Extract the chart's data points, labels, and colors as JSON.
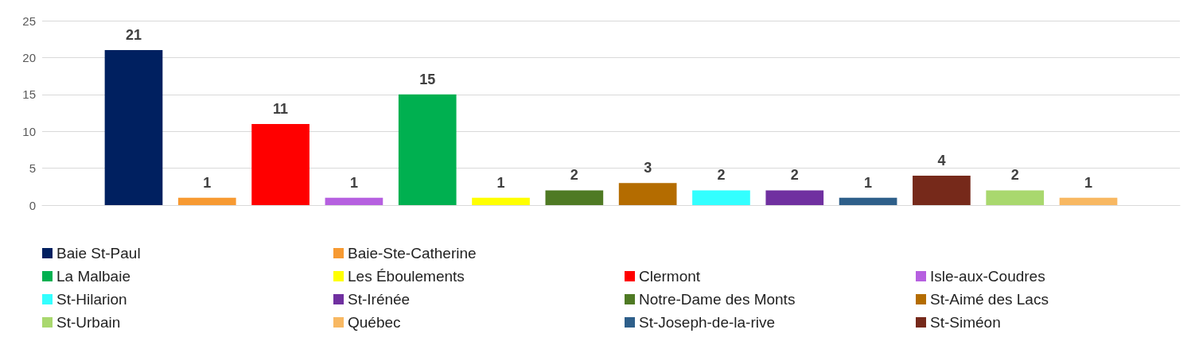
{
  "chart_data": {
    "type": "bar",
    "categories": [
      null
    ],
    "ylim": [
      0,
      25
    ],
    "yticks": [
      0,
      5,
      10,
      15,
      20,
      25
    ],
    "grid": "y",
    "legend": "bottom",
    "data_labels": true,
    "series": [
      {
        "name": "Baie St-Paul",
        "color": "#002060",
        "values": [
          21
        ]
      },
      {
        "name": "Baie-Ste-Catherine",
        "color": "#f79a32",
        "values": [
          1
        ]
      },
      {
        "name": "Clermont",
        "color": "#ff0000",
        "values": [
          11
        ]
      },
      {
        "name": "Isle-aux-Coudres",
        "color": "#b660e0",
        "values": [
          1
        ]
      },
      {
        "name": "La Malbaie",
        "color": "#00b050",
        "values": [
          15
        ]
      },
      {
        "name": "Les Éboulements",
        "color": "#ffff00",
        "values": [
          1
        ]
      },
      {
        "name": "Notre-Dame des Monts",
        "color": "#4f7a24",
        "values": [
          2
        ]
      },
      {
        "name": "St-Aimé des Lacs",
        "color": "#b46c00",
        "values": [
          3
        ]
      },
      {
        "name": "St-Hilarion",
        "color": "#33ffff",
        "values": [
          2
        ]
      },
      {
        "name": "St-Irénée",
        "color": "#7030a0",
        "values": [
          2
        ]
      },
      {
        "name": "St-Joseph-de-la-rive",
        "color": "#2e5f8a",
        "values": [
          1
        ]
      },
      {
        "name": "St-Siméon",
        "color": "#76291a",
        "values": [
          4
        ]
      },
      {
        "name": "St-Urbain",
        "color": "#a9d86e",
        "values": [
          2
        ]
      },
      {
        "name": "Québec",
        "color": "#f8b862",
        "values": [
          1
        ]
      }
    ]
  }
}
